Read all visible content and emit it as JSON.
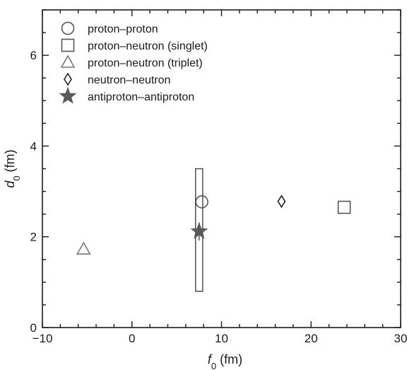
{
  "chart_data": {
    "type": "scatter",
    "title": "",
    "xlabel": "f",
    "xlabel_sub": "0",
    "xlabel_unit": " (fm)",
    "ylabel": "d",
    "ylabel_sub": "0",
    "ylabel_unit": " (fm)",
    "xlim": [
      -10,
      30
    ],
    "ylim": [
      0,
      7
    ],
    "xticks": [
      -10,
      0,
      10,
      20,
      30
    ],
    "yticks": [
      0,
      2,
      4,
      6
    ],
    "grid": false,
    "legend_position": "top-left",
    "series": [
      {
        "name": "proton–proton",
        "marker": "circle",
        "color": "#555555",
        "filled": false,
        "points": [
          {
            "x": 7.8,
            "y": 2.77
          }
        ]
      },
      {
        "name": "proton–neutron (singlet)",
        "marker": "square",
        "color": "#555555",
        "filled": false,
        "points": [
          {
            "x": 23.7,
            "y": 2.65
          }
        ]
      },
      {
        "name": "proton–neutron (triplet)",
        "marker": "triangle",
        "color": "#777777",
        "filled": false,
        "points": [
          {
            "x": -5.4,
            "y": 1.73
          }
        ]
      },
      {
        "name": "neutron–neutron",
        "marker": "diamond",
        "color": "#222222",
        "filled": false,
        "points": [
          {
            "x": 16.7,
            "y": 2.78
          }
        ]
      },
      {
        "name": "antiproton–antiproton",
        "marker": "star",
        "color": "#5a5a5a",
        "filled": true,
        "points": [
          {
            "x": 7.5,
            "y": 2.12,
            "x_range": [
              7.1,
              7.9
            ],
            "y_range": [
              0.8,
              3.5
            ],
            "y_err": [
              1.92,
              2.32
            ]
          }
        ]
      }
    ]
  }
}
